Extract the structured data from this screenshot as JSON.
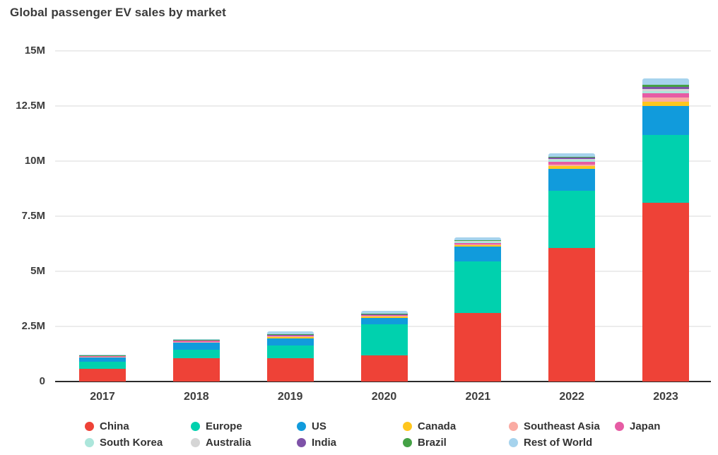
{
  "title": "Global passenger EV sales by market",
  "chart_data": {
    "type": "bar",
    "stacked": true,
    "title": "Global passenger EV sales by market",
    "xlabel": "",
    "ylabel": "",
    "unit": "millions of vehicles",
    "ylim": [
      0,
      15
    ],
    "grid": true,
    "legend_position": "bottom",
    "categories": [
      "2017",
      "2018",
      "2019",
      "2020",
      "2021",
      "2022",
      "2023"
    ],
    "yticks": [
      {
        "value": 0,
        "label": "0"
      },
      {
        "value": 2.5,
        "label": "2.5M"
      },
      {
        "value": 5,
        "label": "5M"
      },
      {
        "value": 7.5,
        "label": "7.5M"
      },
      {
        "value": 10,
        "label": "10M"
      },
      {
        "value": 12.5,
        "label": "12.5M"
      },
      {
        "value": 15,
        "label": "15M"
      }
    ],
    "series": [
      {
        "name": "China",
        "color": "#EE4237",
        "values": [
          0.58,
          1.06,
          1.06,
          1.19,
          3.1,
          6.05,
          8.1
        ]
      },
      {
        "name": "Europe",
        "color": "#00D1AE",
        "values": [
          0.31,
          0.37,
          0.59,
          1.4,
          2.35,
          2.6,
          3.1
        ]
      },
      {
        "name": "US",
        "color": "#119BDC",
        "values": [
          0.2,
          0.32,
          0.32,
          0.3,
          0.67,
          1.0,
          1.31
        ]
      },
      {
        "name": "Canada",
        "color": "#FFC61E",
        "values": [
          0.02,
          0.04,
          0.05,
          0.06,
          0.07,
          0.13,
          0.19
        ]
      },
      {
        "name": "Southeast Asia",
        "color": "#FAABA3",
        "values": [
          0.01,
          0.01,
          0.02,
          0.02,
          0.03,
          0.06,
          0.19
        ]
      },
      {
        "name": "Japan",
        "color": "#E65CA4",
        "values": [
          0.05,
          0.05,
          0.04,
          0.03,
          0.05,
          0.13,
          0.19
        ]
      },
      {
        "name": "South Korea",
        "color": "#ACE6DB",
        "values": [
          0.01,
          0.03,
          0.03,
          0.04,
          0.1,
          0.1,
          0.1
        ]
      },
      {
        "name": "Australia",
        "color": "#D5D5D5",
        "values": [
          0.005,
          0.01,
          0.01,
          0.01,
          0.02,
          0.04,
          0.1
        ]
      },
      {
        "name": "India",
        "color": "#7E52A8",
        "values": [
          0.005,
          0.01,
          0.01,
          0.01,
          0.02,
          0.05,
          0.1
        ]
      },
      {
        "name": "Brazil",
        "color": "#44A145",
        "values": [
          0.005,
          0.005,
          0.01,
          0.01,
          0.01,
          0.02,
          0.08
        ]
      },
      {
        "name": "Rest of World",
        "color": "#A6D3ED",
        "values": [
          0.01,
          0.02,
          0.13,
          0.13,
          0.13,
          0.16,
          0.29
        ]
      }
    ]
  }
}
